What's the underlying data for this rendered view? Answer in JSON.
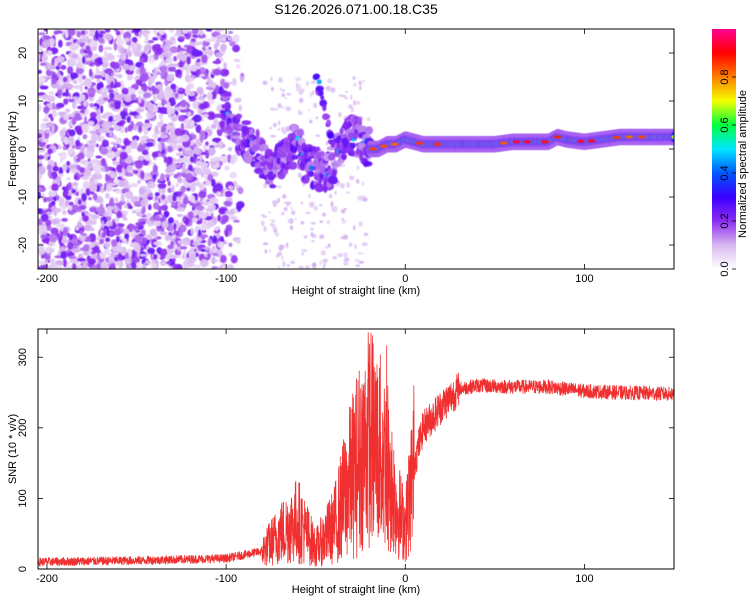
{
  "title": "S126.2026.071.00.18.C35",
  "chart_data": [
    {
      "type": "heatmap",
      "name": "spectrogram",
      "xlabel": "Height of straight line (km)",
      "ylabel": "Frequency (Hz)",
      "xlim": [
        -205,
        150
      ],
      "ylim": [
        -25,
        25
      ],
      "xticks": [
        -200,
        -100,
        0,
        100
      ],
      "yticks": [
        -20,
        -10,
        0,
        10,
        20
      ],
      "colorbar": {
        "label": "Normalized spectral amplitude",
        "range": [
          0,
          1
        ],
        "ticks": [
          "0.0",
          "0.2",
          "0.4",
          "0.6",
          "0.8"
        ],
        "tick_values": [
          0.0,
          0.2,
          0.4,
          0.6,
          0.8
        ],
        "colors": [
          "#ffffff",
          "#d8b8f0",
          "#8c2cf0",
          "#3a00ff",
          "#0057ff",
          "#00e8ff",
          "#00ff40",
          "#f5ff00",
          "#ff7f00",
          "#ff0000",
          "#ff0090"
        ]
      },
      "ridge": {
        "x": [
          -100,
          -95,
          -90,
          -85,
          -80,
          -75,
          -70,
          -65,
          -60,
          -55,
          -50,
          -45,
          -40,
          -35,
          -30,
          -25,
          -20,
          -15,
          -10,
          -5,
          0,
          10,
          20,
          30,
          40,
          50,
          60,
          70,
          80,
          85,
          90,
          100,
          110,
          120,
          130,
          140,
          150
        ],
        "freq": [
          8,
          4,
          2,
          1,
          -2,
          -4,
          -3,
          0,
          1,
          -3,
          -4,
          -5,
          -3,
          1,
          3,
          2,
          0,
          0,
          1,
          1,
          2,
          1,
          1,
          1,
          1,
          1,
          1.5,
          1.5,
          1.5,
          2.5,
          2,
          1.5,
          2,
          2.5,
          2.5,
          2.5,
          2.5
        ]
      },
      "strong_band": {
        "x_start": -20,
        "x_end": 150,
        "center_freq": 1.5
      }
    },
    {
      "type": "line",
      "name": "snr",
      "xlabel": "Height of straight line (km)",
      "ylabel": "SNR (10 * v/v)",
      "xlim": [
        -205,
        150
      ],
      "ylim": [
        0,
        340
      ],
      "xticks": [
        -200,
        -100,
        0,
        100
      ],
      "yticks": [
        0,
        100,
        200,
        300
      ],
      "color": "#f03030",
      "envelope": {
        "x": [
          -205,
          -150,
          -100,
          -80,
          -70,
          -60,
          -50,
          -40,
          -30,
          -25,
          -20,
          -15,
          -10,
          -5,
          0,
          5,
          10,
          20,
          30,
          40,
          60,
          80,
          100,
          120,
          150
        ],
        "snr": [
          10,
          12,
          15,
          25,
          50,
          70,
          30,
          60,
          130,
          160,
          190,
          170,
          150,
          90,
          60,
          150,
          200,
          230,
          255,
          260,
          258,
          258,
          252,
          250,
          248
        ]
      }
    }
  ]
}
